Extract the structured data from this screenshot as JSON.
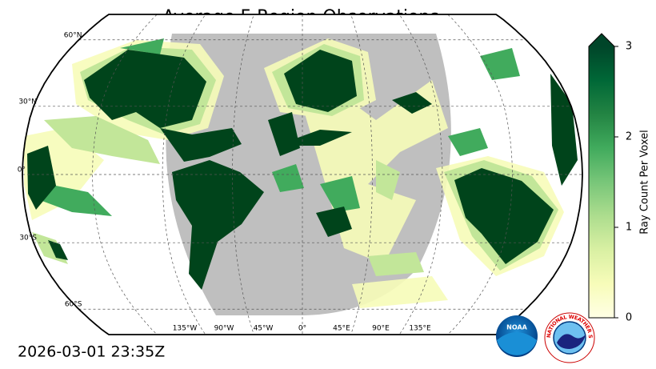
{
  "chart_data": {
    "type": "map",
    "title": "Average F-Region Observations",
    "lat_ticks": [
      {
        "value": 60,
        "label": "60°N"
      },
      {
        "value": 30,
        "label": "30°N"
      },
      {
        "value": 0,
        "label": "0°"
      },
      {
        "value": -30,
        "label": "30°S"
      },
      {
        "value": -60,
        "label": "60°S"
      }
    ],
    "lon_ticks": [
      {
        "value": -135,
        "label": "135°W"
      },
      {
        "value": -90,
        "label": "90°W"
      },
      {
        "value": -45,
        "label": "45°W"
      },
      {
        "value": 0,
        "label": "0°"
      },
      {
        "value": 45,
        "label": "45°E"
      },
      {
        "value": 90,
        "label": "90°E"
      },
      {
        "value": 135,
        "label": "135°E"
      }
    ],
    "colorbar": {
      "label": "Ray Count Per Voxel",
      "lim": [
        0,
        3
      ],
      "ticks": [
        0,
        1,
        2,
        3
      ],
      "colors": [
        "#ffffe5",
        "#f7fcb9",
        "#d9f0a3",
        "#addd8e",
        "#78c679",
        "#41ab5d",
        "#238443",
        "#006837",
        "#004529"
      ]
    },
    "timestamp": "2026-03-01 23:35Z",
    "logos": {
      "noaa": "NOAA",
      "nws": "NATIONAL WEATHER SERVICE"
    }
  }
}
